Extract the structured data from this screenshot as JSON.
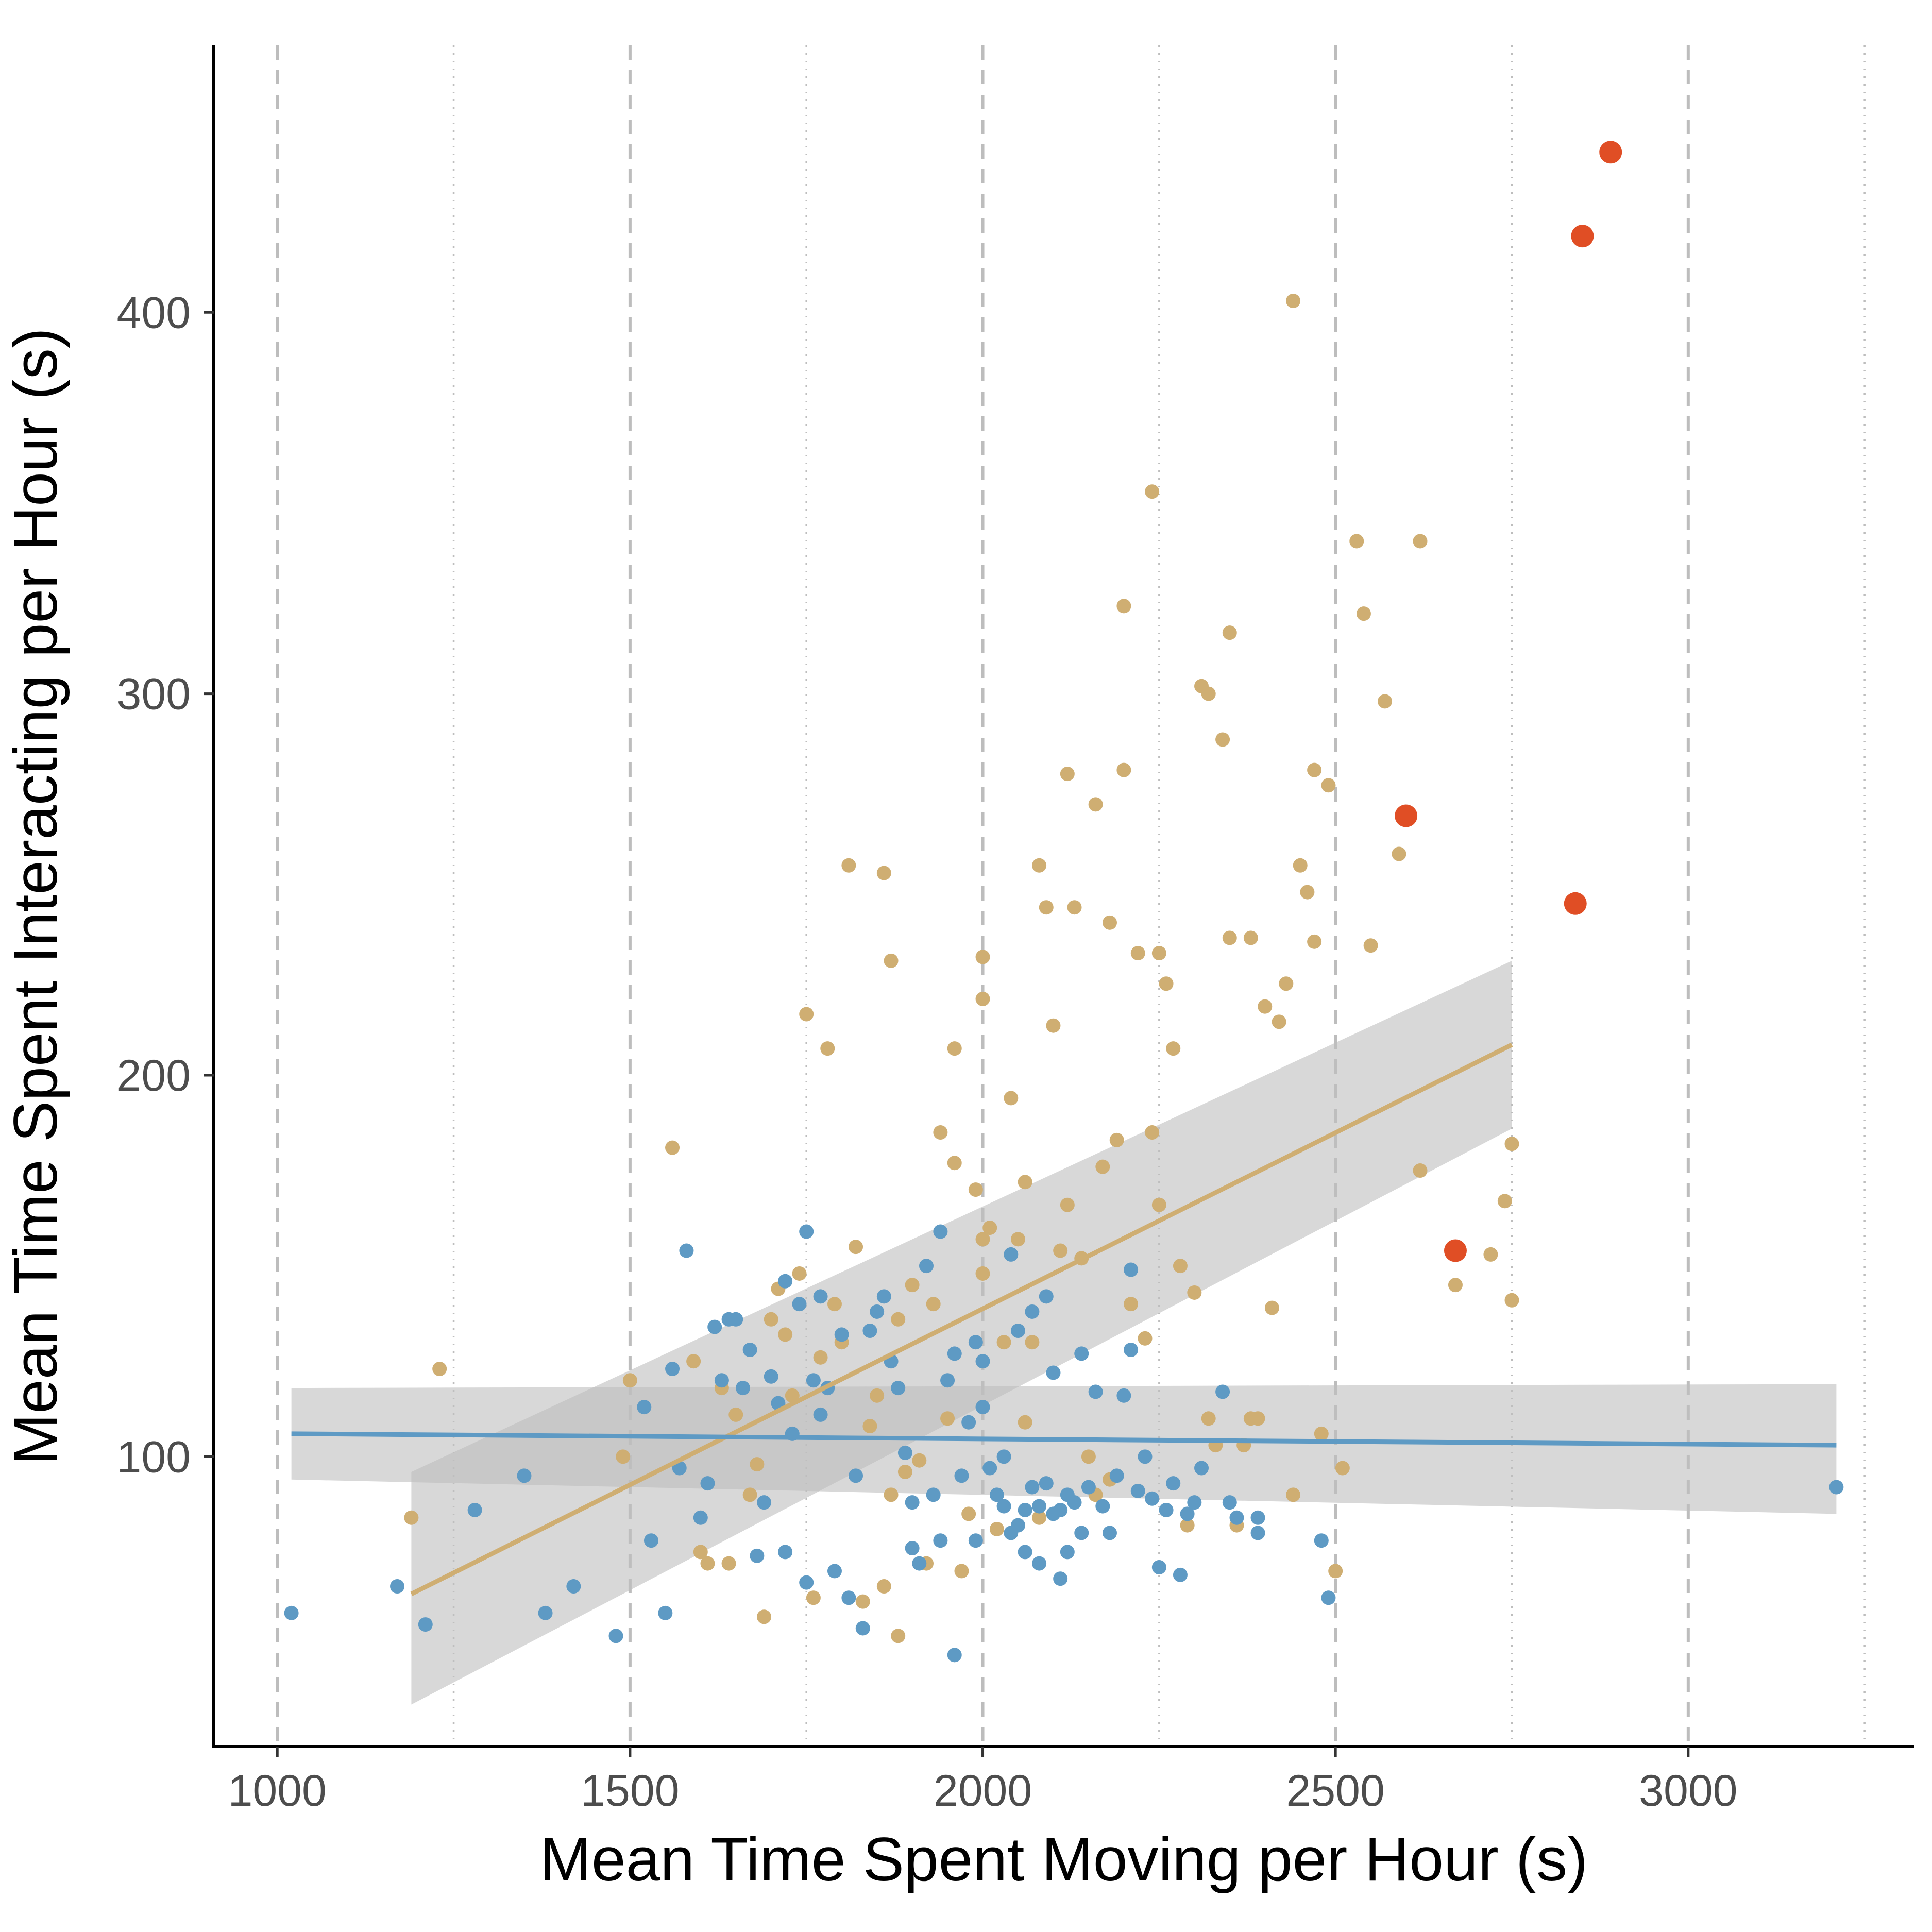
{
  "chart_data": {
    "type": "scatter",
    "title": "",
    "xlabel": "Mean Time Spent Moving per Hour (s)",
    "ylabel": "Mean Time Spent Interacting per Hour (s)",
    "xlim": [
      910,
      3320
    ],
    "ylim": [
      24,
      470
    ],
    "x_ticks": [
      1000,
      1500,
      2000,
      2500,
      3000
    ],
    "x_tick_labels": [
      "1000",
      "1500",
      "2000",
      "2500",
      "3000"
    ],
    "y_ticks": [
      100,
      200,
      300,
      400
    ],
    "y_tick_labels": [
      "100",
      "200",
      "300",
      "400"
    ],
    "x_minor_ticks": [
      1250,
      1750,
      2250,
      2750,
      3250
    ],
    "grid": {
      "major_x": "dashed",
      "minor_x": "dotted",
      "y": false
    },
    "legend": "none",
    "colors": {
      "tan": "#cfae72",
      "blue": "#5e9ac4",
      "red": "#e04e25",
      "band": "#bebebe",
      "grid": "#bdbdbd"
    },
    "series": [
      {
        "color": "#cfae72",
        "points": [
          [
            1190,
            84
          ],
          [
            1230,
            123
          ],
          [
            1490,
            100
          ],
          [
            1500,
            120
          ],
          [
            1560,
            181
          ],
          [
            1590,
            125
          ],
          [
            1600,
            75
          ],
          [
            1610,
            72
          ],
          [
            1630,
            118
          ],
          [
            1640,
            72
          ],
          [
            1650,
            111
          ],
          [
            1670,
            90
          ],
          [
            1680,
            98
          ],
          [
            1690,
            58
          ],
          [
            1700,
            136
          ],
          [
            1710,
            144
          ],
          [
            1720,
            132
          ],
          [
            1730,
            116
          ],
          [
            1740,
            148
          ],
          [
            1750,
            216
          ],
          [
            1760,
            63
          ],
          [
            1770,
            126
          ],
          [
            1780,
            207
          ],
          [
            1790,
            140
          ],
          [
            1800,
            130
          ],
          [
            1810,
            255
          ],
          [
            1820,
            155
          ],
          [
            1830,
            62
          ],
          [
            1840,
            108
          ],
          [
            1850,
            116
          ],
          [
            1860,
            66
          ],
          [
            1870,
            230
          ],
          [
            1870,
            90
          ],
          [
            1880,
            136
          ],
          [
            1880,
            53
          ],
          [
            1890,
            96
          ],
          [
            1900,
            145
          ],
          [
            1910,
            99
          ],
          [
            1920,
            72
          ],
          [
            1930,
            140
          ],
          [
            1940,
            185
          ],
          [
            1950,
            110
          ],
          [
            1960,
            207
          ],
          [
            1960,
            177
          ],
          [
            1970,
            70
          ],
          [
            1980,
            85
          ],
          [
            1990,
            170
          ],
          [
            2000,
            231
          ],
          [
            2000,
            220
          ],
          [
            2000,
            157
          ],
          [
            2000,
            148
          ],
          [
            2010,
            160
          ],
          [
            2020,
            81
          ],
          [
            2030,
            130
          ],
          [
            2040,
            194
          ],
          [
            2050,
            157
          ],
          [
            2060,
            172
          ],
          [
            2060,
            109
          ],
          [
            2070,
            130
          ],
          [
            2080,
            84
          ],
          [
            2090,
            244
          ],
          [
            2100,
            213
          ],
          [
            2110,
            154
          ],
          [
            2120,
            279
          ],
          [
            2120,
            166
          ],
          [
            2130,
            244
          ],
          [
            2140,
            152
          ],
          [
            2150,
            100
          ],
          [
            2160,
            90
          ],
          [
            2170,
            176
          ],
          [
            2180,
            94
          ],
          [
            2180,
            240
          ],
          [
            2190,
            183
          ],
          [
            2200,
            323
          ],
          [
            2200,
            280
          ],
          [
            2210,
            140
          ],
          [
            2220,
            232
          ],
          [
            2230,
            131
          ],
          [
            2240,
            185
          ],
          [
            2240,
            353
          ],
          [
            2250,
            166
          ],
          [
            2250,
            232
          ],
          [
            2260,
            224
          ],
          [
            2270,
            207
          ],
          [
            2280,
            150
          ],
          [
            2290,
            82
          ],
          [
            2300,
            143
          ],
          [
            2310,
            302
          ],
          [
            2320,
            110
          ],
          [
            2320,
            300
          ],
          [
            2330,
            103
          ],
          [
            2340,
            288
          ],
          [
            2350,
            316
          ],
          [
            2350,
            236
          ],
          [
            2360,
            82
          ],
          [
            2370,
            103
          ],
          [
            2380,
            236
          ],
          [
            2380,
            110
          ],
          [
            2390,
            110
          ],
          [
            2400,
            218
          ],
          [
            2410,
            139
          ],
          [
            2420,
            214
          ],
          [
            2430,
            224
          ],
          [
            2440,
            403
          ],
          [
            2450,
            255
          ],
          [
            2460,
            248
          ],
          [
            2470,
            280
          ],
          [
            2470,
            235
          ],
          [
            2480,
            106
          ],
          [
            2490,
            276
          ],
          [
            2500,
            70
          ],
          [
            2510,
            97
          ],
          [
            2530,
            340
          ],
          [
            2540,
            321
          ],
          [
            2550,
            234
          ],
          [
            2570,
            298
          ],
          [
            2590,
            258
          ],
          [
            2620,
            340
          ],
          [
            2620,
            175
          ],
          [
            2670,
            145
          ],
          [
            2720,
            153
          ],
          [
            2740,
            167
          ],
          [
            2750,
            182
          ],
          [
            2750,
            141
          ],
          [
            2440,
            90
          ],
          [
            2160,
            271
          ],
          [
            2080,
            255
          ],
          [
            1860,
            253
          ]
        ]
      },
      {
        "color": "#5e9ac4",
        "points": [
          [
            1020,
            59
          ],
          [
            1170,
            66
          ],
          [
            1210,
            56
          ],
          [
            1280,
            86
          ],
          [
            1350,
            95
          ],
          [
            1380,
            59
          ],
          [
            1420,
            66
          ],
          [
            1480,
            53
          ],
          [
            1520,
            113
          ],
          [
            1530,
            78
          ],
          [
            1550,
            59
          ],
          [
            1560,
            123
          ],
          [
            1570,
            97
          ],
          [
            1580,
            154
          ],
          [
            1600,
            84
          ],
          [
            1610,
            93
          ],
          [
            1620,
            134
          ],
          [
            1630,
            120
          ],
          [
            1640,
            136
          ],
          [
            1650,
            136
          ],
          [
            1660,
            118
          ],
          [
            1670,
            128
          ],
          [
            1680,
            74
          ],
          [
            1690,
            88
          ],
          [
            1700,
            121
          ],
          [
            1710,
            114
          ],
          [
            1720,
            146
          ],
          [
            1720,
            75
          ],
          [
            1730,
            106
          ],
          [
            1740,
            140
          ],
          [
            1750,
            67
          ],
          [
            1750,
            159
          ],
          [
            1760,
            120
          ],
          [
            1770,
            111
          ],
          [
            1770,
            142
          ],
          [
            1780,
            118
          ],
          [
            1790,
            70
          ],
          [
            1800,
            132
          ],
          [
            1810,
            63
          ],
          [
            1820,
            95
          ],
          [
            1830,
            55
          ],
          [
            1840,
            133
          ],
          [
            1850,
            138
          ],
          [
            1860,
            142
          ],
          [
            1870,
            125
          ],
          [
            1880,
            118
          ],
          [
            1890,
            101
          ],
          [
            1900,
            76
          ],
          [
            1900,
            88
          ],
          [
            1910,
            72
          ],
          [
            1920,
            150
          ],
          [
            1930,
            90
          ],
          [
            1940,
            78
          ],
          [
            1940,
            159
          ],
          [
            1950,
            120
          ],
          [
            1960,
            127
          ],
          [
            1960,
            48
          ],
          [
            1970,
            95
          ],
          [
            1980,
            109
          ],
          [
            1990,
            78
          ],
          [
            1990,
            130
          ],
          [
            2000,
            113
          ],
          [
            2000,
            125
          ],
          [
            2010,
            97
          ],
          [
            2020,
            90
          ],
          [
            2030,
            100
          ],
          [
            2030,
            87
          ],
          [
            2040,
            153
          ],
          [
            2040,
            80
          ],
          [
            2050,
            82
          ],
          [
            2050,
            133
          ],
          [
            2060,
            86
          ],
          [
            2060,
            75
          ],
          [
            2070,
            92
          ],
          [
            2070,
            138
          ],
          [
            2080,
            87
          ],
          [
            2080,
            72
          ],
          [
            2090,
            93
          ],
          [
            2090,
            142
          ],
          [
            2100,
            85
          ],
          [
            2100,
            122
          ],
          [
            2110,
            86
          ],
          [
            2110,
            68
          ],
          [
            2120,
            90
          ],
          [
            2120,
            75
          ],
          [
            2130,
            88
          ],
          [
            2140,
            80
          ],
          [
            2140,
            127
          ],
          [
            2150,
            92
          ],
          [
            2160,
            117
          ],
          [
            2170,
            87
          ],
          [
            2180,
            80
          ],
          [
            2190,
            95
          ],
          [
            2200,
            116
          ],
          [
            2210,
            128
          ],
          [
            2210,
            149
          ],
          [
            2220,
            91
          ],
          [
            2230,
            100
          ],
          [
            2240,
            89
          ],
          [
            2250,
            71
          ],
          [
            2260,
            86
          ],
          [
            2270,
            93
          ],
          [
            2280,
            69
          ],
          [
            2290,
            85
          ],
          [
            2300,
            88
          ],
          [
            2310,
            97
          ],
          [
            2340,
            117
          ],
          [
            2350,
            88
          ],
          [
            2360,
            84
          ],
          [
            2390,
            84
          ],
          [
            2390,
            80
          ],
          [
            2480,
            78
          ],
          [
            2490,
            63
          ],
          [
            3210,
            92
          ]
        ]
      },
      {
        "color": "#e04e25",
        "points": [
          [
            2890,
            442
          ],
          [
            2850,
            420
          ],
          [
            2600,
            268
          ],
          [
            2840,
            245
          ],
          [
            2670,
            154
          ]
        ]
      }
    ],
    "trend_lines": [
      {
        "color": "#cfae72",
        "x": [
          1190,
          2750
        ],
        "y": [
          64,
          208
        ],
        "band_lower": [
          35,
          186
        ],
        "band_upper": [
          96,
          230
        ]
      },
      {
        "color": "#5e9ac4",
        "x": [
          1020,
          3210
        ],
        "y": [
          106,
          103
        ],
        "band_lower": [
          94,
          85
        ],
        "band_upper": [
          118,
          119
        ]
      }
    ]
  }
}
